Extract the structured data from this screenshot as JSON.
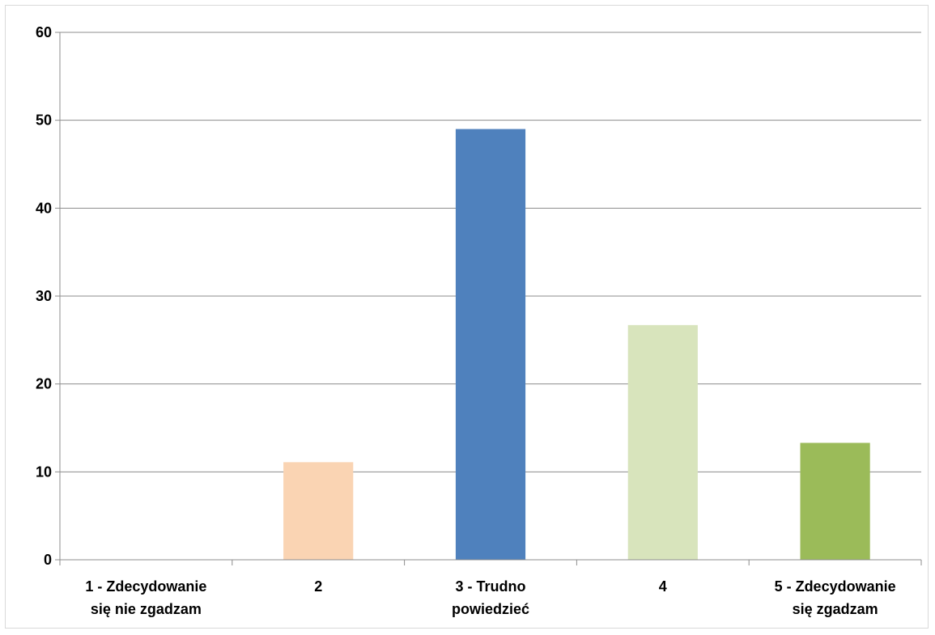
{
  "chart_data": {
    "type": "bar",
    "categories": [
      [
        "1 - Zdecydowanie",
        "się nie zgadzam"
      ],
      [
        "2"
      ],
      [
        "3 - Trudno",
        "powiedzieć"
      ],
      [
        "4"
      ],
      [
        "5 - Zdecydowanie",
        "się zgadzam"
      ]
    ],
    "values": [
      0,
      11.1,
      49,
      26.7,
      13.3
    ],
    "colors": [
      "#4f81bd",
      "#fad4b3",
      "#4f81bd",
      "#d8e4bc",
      "#9bbb59"
    ],
    "ylim": [
      0,
      60
    ],
    "yticks": [
      0,
      10,
      20,
      30,
      40,
      50,
      60
    ],
    "grid": true,
    "gridline_color": "#8c8c8c",
    "title": "",
    "xlabel": "",
    "ylabel": ""
  }
}
